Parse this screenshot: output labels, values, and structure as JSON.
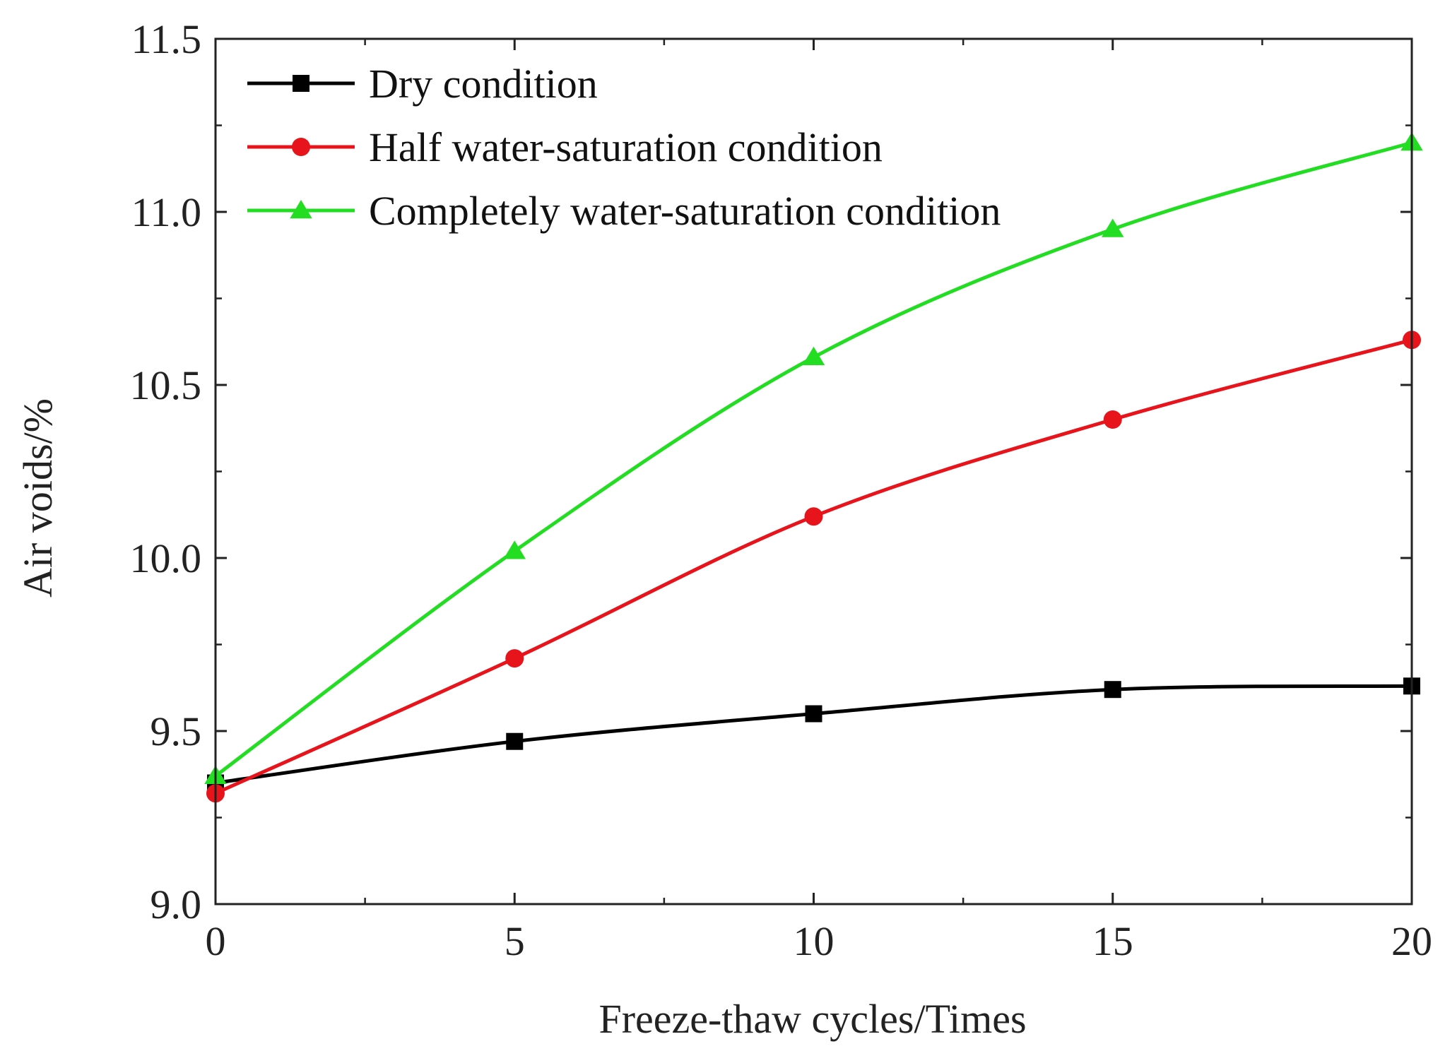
{
  "chart_data": {
    "type": "line",
    "title": "",
    "xlabel": "Freeze-thaw cycles/Times",
    "ylabel": "Air voids/%",
    "x": [
      0,
      5,
      10,
      15,
      20
    ],
    "xlim": [
      0,
      20
    ],
    "ylim": [
      9.0,
      11.5
    ],
    "xticks": [
      "0",
      "5",
      "10",
      "15",
      "20"
    ],
    "yticks": [
      "9.0",
      "9.5",
      "10.0",
      "10.5",
      "11.0",
      "11.5"
    ],
    "grid": false,
    "legend_position": "top-left",
    "series": [
      {
        "name": "Dry condition",
        "values": [
          9.35,
          9.47,
          9.55,
          9.62,
          9.63
        ],
        "color": "#000000",
        "marker": "square"
      },
      {
        "name": "Half water-saturation condition",
        "values": [
          9.32,
          9.71,
          10.12,
          10.4,
          10.63
        ],
        "color": "#e8141c",
        "marker": "circle"
      },
      {
        "name": "Completely water-saturation condition",
        "values": [
          9.37,
          10.02,
          10.58,
          10.95,
          11.2
        ],
        "color": "#22dd22",
        "marker": "triangle"
      }
    ]
  }
}
